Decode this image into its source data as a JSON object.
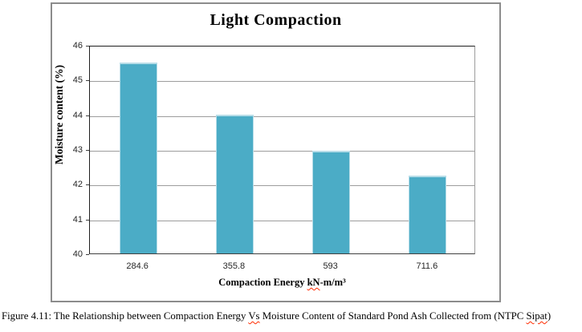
{
  "figure": {
    "border_color": "#8c8c8c",
    "background": "#ffffff"
  },
  "chart_data": {
    "type": "bar",
    "title": "Light Compaction",
    "categories": [
      "284.6",
      "355.8",
      "593",
      "711.6"
    ],
    "values": [
      45.5,
      44,
      42.95,
      42.25
    ],
    "xlabel": "Compaction Energy kN-m/m³",
    "xlabel_parts": [
      {
        "text": "Compaction Energy "
      },
      {
        "text": "kN",
        "spellcheck": true
      },
      {
        "text": "-m/m³"
      }
    ],
    "ylabel": "Moisture content (%)",
    "ylim": [
      40,
      46
    ],
    "ytick_step": 1,
    "grid": true,
    "legend_position": "none",
    "bar_color": "#4bacc6",
    "bar_edge_color": "#b7dde8",
    "gridline_color": "#9d9d9d",
    "axis_color": "#1f1f1f"
  },
  "caption": {
    "text": "Figure 4.11: The Relationship between Compaction Energy Vs Moisture Content of Standard Pond Ash Collected from (NTPC Sipat)",
    "parts": [
      {
        "text": "Figure 4.11: The Relationship between Compaction Energy "
      },
      {
        "text": "Vs",
        "spellcheck": true
      },
      {
        "text": " Moisture Content of Standard Pond Ash Collected from (NTPC "
      },
      {
        "text": "Sipat",
        "spellcheck": true
      },
      {
        "text": ")"
      }
    ]
  }
}
